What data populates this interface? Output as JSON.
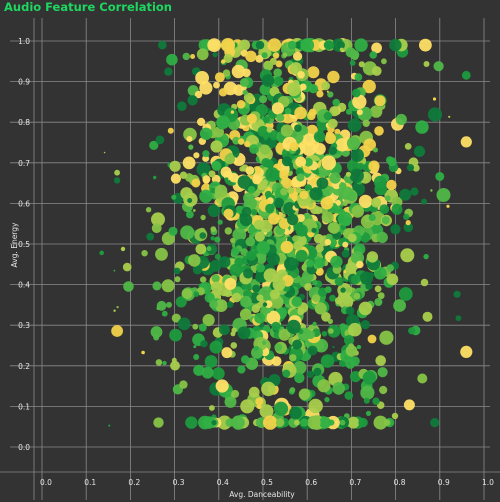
{
  "colors": {
    "background": "#333333",
    "grid": "#8a8a8a",
    "title": "#1ed760",
    "text": "#e6e6e6",
    "points": [
      "#0f7a3a",
      "#1e9a3e",
      "#2faf45",
      "#4fb848",
      "#86c447",
      "#a8cf4c",
      "#f2d34a",
      "#ffe066"
    ]
  },
  "chart_data": {
    "type": "scatter",
    "title": "Audio Feature Correlation",
    "xlabel": "Avg. Danceability",
    "ylabel": "Avg. Energy",
    "xlim": [
      0.0,
      1.0
    ],
    "ylim": [
      -0.05,
      1.02
    ],
    "x_ticks": [
      "0.0",
      "0.1",
      "0.2",
      "0.3",
      "0.4",
      "0.5",
      "0.6",
      "0.7",
      "0.8",
      "0.9",
      "1.0"
    ],
    "y_ticks": [
      "0.0",
      "0.1",
      "0.2",
      "0.3",
      "0.4",
      "0.5",
      "0.6",
      "0.7",
      "0.8",
      "0.9",
      "1.0"
    ],
    "grid": true,
    "legend": "none",
    "point_count": 1400,
    "density": {
      "x_center": 0.56,
      "x_spread": 0.13,
      "y_center": 0.55,
      "y_spread": 0.26,
      "x_range": [
        0.17,
        0.96
      ],
      "y_range": [
        0.06,
        0.99
      ]
    }
  }
}
